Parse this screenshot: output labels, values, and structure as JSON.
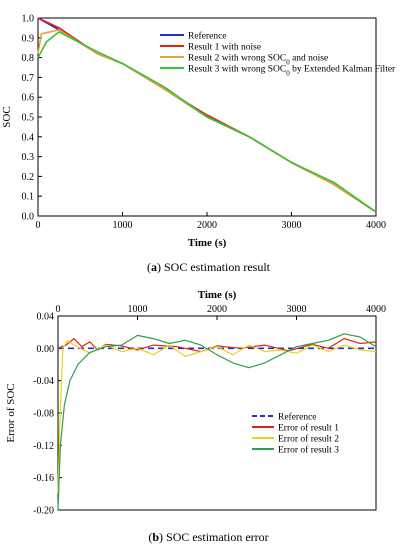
{
  "chart_data": [
    {
      "type": "line",
      "caption_letter": "a",
      "caption_text": "SOC estimation result",
      "xlabel": "Time (s)",
      "ylabel": "SOC",
      "xlim": [
        0,
        4000
      ],
      "ylim": [
        0,
        1.0
      ],
      "x_ticks": [
        "0",
        "1000",
        "2000",
        "3000",
        "4000"
      ],
      "y_ticks": [
        "0.0",
        "0.1",
        "0.2",
        "0.3",
        "0.4",
        "0.5",
        "0.6",
        "0.7",
        "0.8",
        "0.9",
        "1.0"
      ],
      "legend_position": "top-right",
      "series": [
        {
          "name": "Reference",
          "color": "#1f2fd6",
          "x": [
            0,
            250,
            700,
            1000,
            1500,
            2000,
            2500,
            3000,
            3500,
            4000
          ],
          "y": [
            1.0,
            0.94,
            0.82,
            0.77,
            0.64,
            0.5,
            0.4,
            0.27,
            0.16,
            0.02
          ]
        },
        {
          "name": "Result 1 with noise",
          "color": "#e2231a",
          "x": [
            0,
            250,
            700,
            1000,
            1500,
            2000,
            2500,
            3000,
            3500,
            4000
          ],
          "y": [
            1.0,
            0.95,
            0.82,
            0.77,
            0.64,
            0.51,
            0.4,
            0.27,
            0.16,
            0.02
          ]
        },
        {
          "name_prefix": "Result 2 with wrong SOC",
          "name_sub": "0",
          "name_suffix": " and noise",
          "color": "#e8a33b",
          "x": [
            0,
            40,
            250,
            700,
            1000,
            1500,
            2000,
            2500,
            3000,
            3500,
            4000
          ],
          "y": [
            0.82,
            0.92,
            0.94,
            0.82,
            0.77,
            0.64,
            0.5,
            0.4,
            0.27,
            0.16,
            0.02
          ]
        },
        {
          "name_prefix": "Result 3 with wrong SOC",
          "name_sub": "0",
          "name_suffix": " by Extended Kalman Filter",
          "color": "#35c435",
          "x": [
            0,
            100,
            250,
            700,
            1000,
            1500,
            2000,
            2500,
            3000,
            3500,
            4000
          ],
          "y": [
            0.8,
            0.88,
            0.93,
            0.83,
            0.77,
            0.65,
            0.5,
            0.4,
            0.27,
            0.17,
            0.02
          ]
        }
      ]
    },
    {
      "type": "line",
      "caption_letter": "b",
      "caption_text": "SOC estimation error",
      "xlabel": "Time (s)",
      "ylabel": "Error of SOC",
      "xlim": [
        0,
        4000
      ],
      "ylim": [
        -0.2,
        0.04
      ],
      "x_ticks": [
        "0",
        "1000",
        "2000",
        "3000",
        "4000"
      ],
      "y_ticks": [
        "0.04",
        "0.00",
        "-0.04",
        "-0.08",
        "-0.12",
        "-0.16",
        "-0.20"
      ],
      "legend_position": "bottom-right",
      "series": [
        {
          "name": "Reference",
          "color": "#1f2fd6",
          "dashed": true,
          "x": [
            0,
            4000
          ],
          "y": [
            0,
            0
          ]
        },
        {
          "name": "Error of result 1",
          "color": "#e2231a",
          "x": [
            0,
            100,
            200,
            300,
            400,
            500,
            600,
            800,
            1000,
            1200,
            1500,
            1800,
            2000,
            2300,
            2600,
            2900,
            3200,
            3400,
            3600,
            3800,
            4000
          ],
          "y": [
            0,
            0.004,
            0.012,
            0.002,
            0.008,
            -0.002,
            0.005,
            0.003,
            -0.002,
            0.004,
            0.002,
            -0.004,
            0.003,
            0.0,
            0.004,
            -0.003,
            0.005,
            0.0,
            0.012,
            0.006,
            0.008
          ]
        },
        {
          "name": "Error of result 2",
          "color": "#e8d21e",
          "x": [
            0,
            20,
            60,
            120,
            200,
            400,
            600,
            800,
            1000,
            1200,
            1400,
            1600,
            1800,
            2000,
            2200,
            2400,
            2600,
            2800,
            3000,
            3200,
            3400,
            3600,
            3800,
            4000
          ],
          "y": [
            -0.18,
            -0.1,
            0.0,
            0.01,
            0.004,
            -0.006,
            0.004,
            -0.004,
            0.0,
            -0.008,
            0.004,
            -0.01,
            -0.004,
            0.002,
            -0.008,
            0.004,
            -0.004,
            -0.002,
            -0.006,
            0.004,
            -0.004,
            0.004,
            -0.002,
            -0.004
          ]
        },
        {
          "name": "Error of result 3",
          "color": "#2e9e4f",
          "x": [
            0,
            30,
            80,
            150,
            250,
            400,
            600,
            800,
            1000,
            1200,
            1400,
            1600,
            1800,
            2000,
            2200,
            2400,
            2600,
            2800,
            3000,
            3200,
            3400,
            3600,
            3800,
            4000
          ],
          "y": [
            -0.2,
            -0.12,
            -0.07,
            -0.04,
            -0.02,
            -0.005,
            0.002,
            0.004,
            0.016,
            0.012,
            0.006,
            0.01,
            0.004,
            -0.008,
            -0.018,
            -0.024,
            -0.018,
            -0.008,
            0.002,
            0.006,
            0.01,
            0.018,
            0.014,
            0.002
          ]
        }
      ]
    }
  ]
}
